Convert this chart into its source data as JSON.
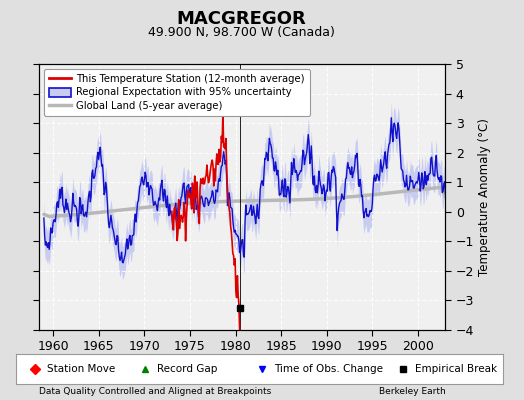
{
  "title": "MACGREGOR",
  "subtitle": "49.900 N, 98.700 W (Canada)",
  "ylabel": "Temperature Anomaly (°C)",
  "xlabel_left": "Data Quality Controlled and Aligned at Breakpoints",
  "xlabel_right": "Berkeley Earth",
  "xlim": [
    1958.5,
    2003.0
  ],
  "ylim": [
    -4,
    5
  ],
  "yticks": [
    -4,
    -3,
    -2,
    -1,
    0,
    1,
    2,
    3,
    4,
    5
  ],
  "xticks": [
    1960,
    1965,
    1970,
    1975,
    1980,
    1985,
    1990,
    1995,
    2000
  ],
  "bg_color": "#e0e0e0",
  "plot_bg_color": "#f0f0f0",
  "grid_color": "#ffffff",
  "regional_fill_color": "#c8ccf0",
  "regional_line_color": "#1111cc",
  "station_line_color": "#dd0000",
  "global_line_color": "#b8b8b8",
  "empirical_break_x": 1980.5,
  "empirical_break_y": -3.25
}
